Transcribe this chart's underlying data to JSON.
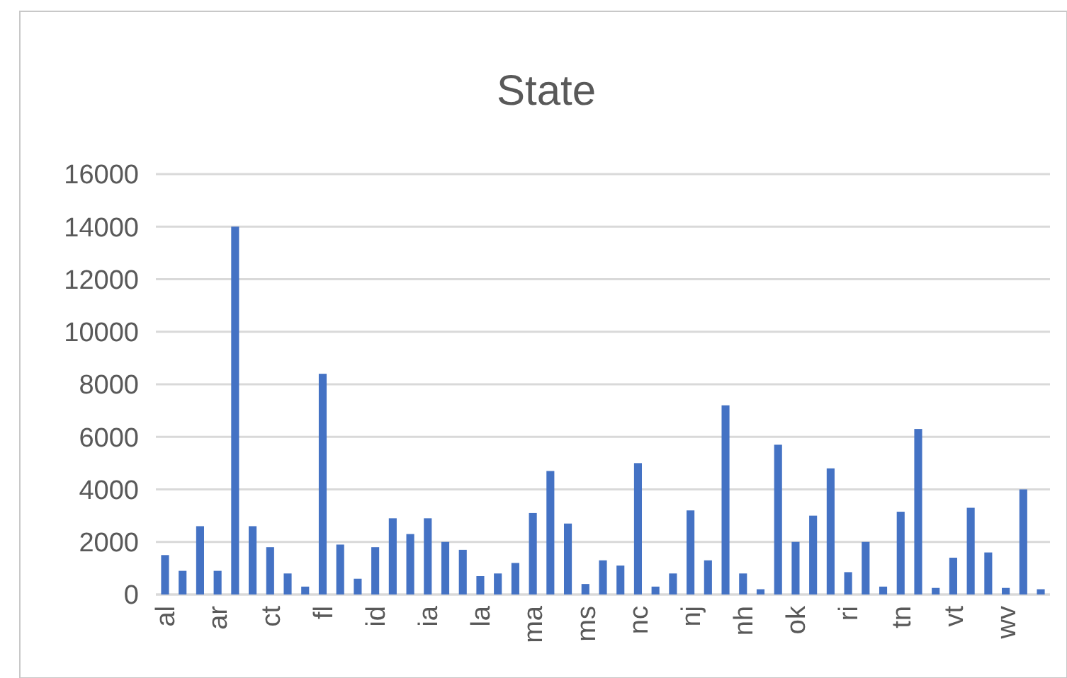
{
  "chart_data": {
    "type": "bar",
    "title": "State",
    "categories": [
      "al",
      null,
      null,
      "ar",
      null,
      null,
      "ct",
      null,
      null,
      "fl",
      null,
      null,
      "id",
      null,
      null,
      "ia",
      null,
      null,
      "la",
      null,
      null,
      "ma",
      null,
      null,
      "ms",
      null,
      null,
      "nc",
      null,
      null,
      "nj",
      null,
      null,
      "nh",
      null,
      null,
      "ok",
      null,
      null,
      "ri",
      null,
      null,
      "tn",
      null,
      null,
      "vt",
      null,
      null,
      "wv",
      null,
      null
    ],
    "values": [
      1500,
      900,
      2600,
      900,
      14000,
      2600,
      1800,
      800,
      300,
      8400,
      1900,
      600,
      1800,
      2900,
      2300,
      2900,
      2000,
      1700,
      700,
      800,
      1200,
      3100,
      4700,
      2700,
      400,
      1300,
      1100,
      5000,
      300,
      800,
      3200,
      1300,
      7200,
      800,
      200,
      5700,
      2000,
      3000,
      4800,
      850,
      2000,
      300,
      3150,
      6300,
      250,
      1400,
      3300,
      1600,
      250,
      4000,
      200
    ],
    "color": "#4472c4",
    "ylim": [
      0,
      16000
    ],
    "yticks": [
      0,
      2000,
      4000,
      6000,
      8000,
      10000,
      12000,
      14000,
      16000
    ],
    "grid": "y"
  }
}
